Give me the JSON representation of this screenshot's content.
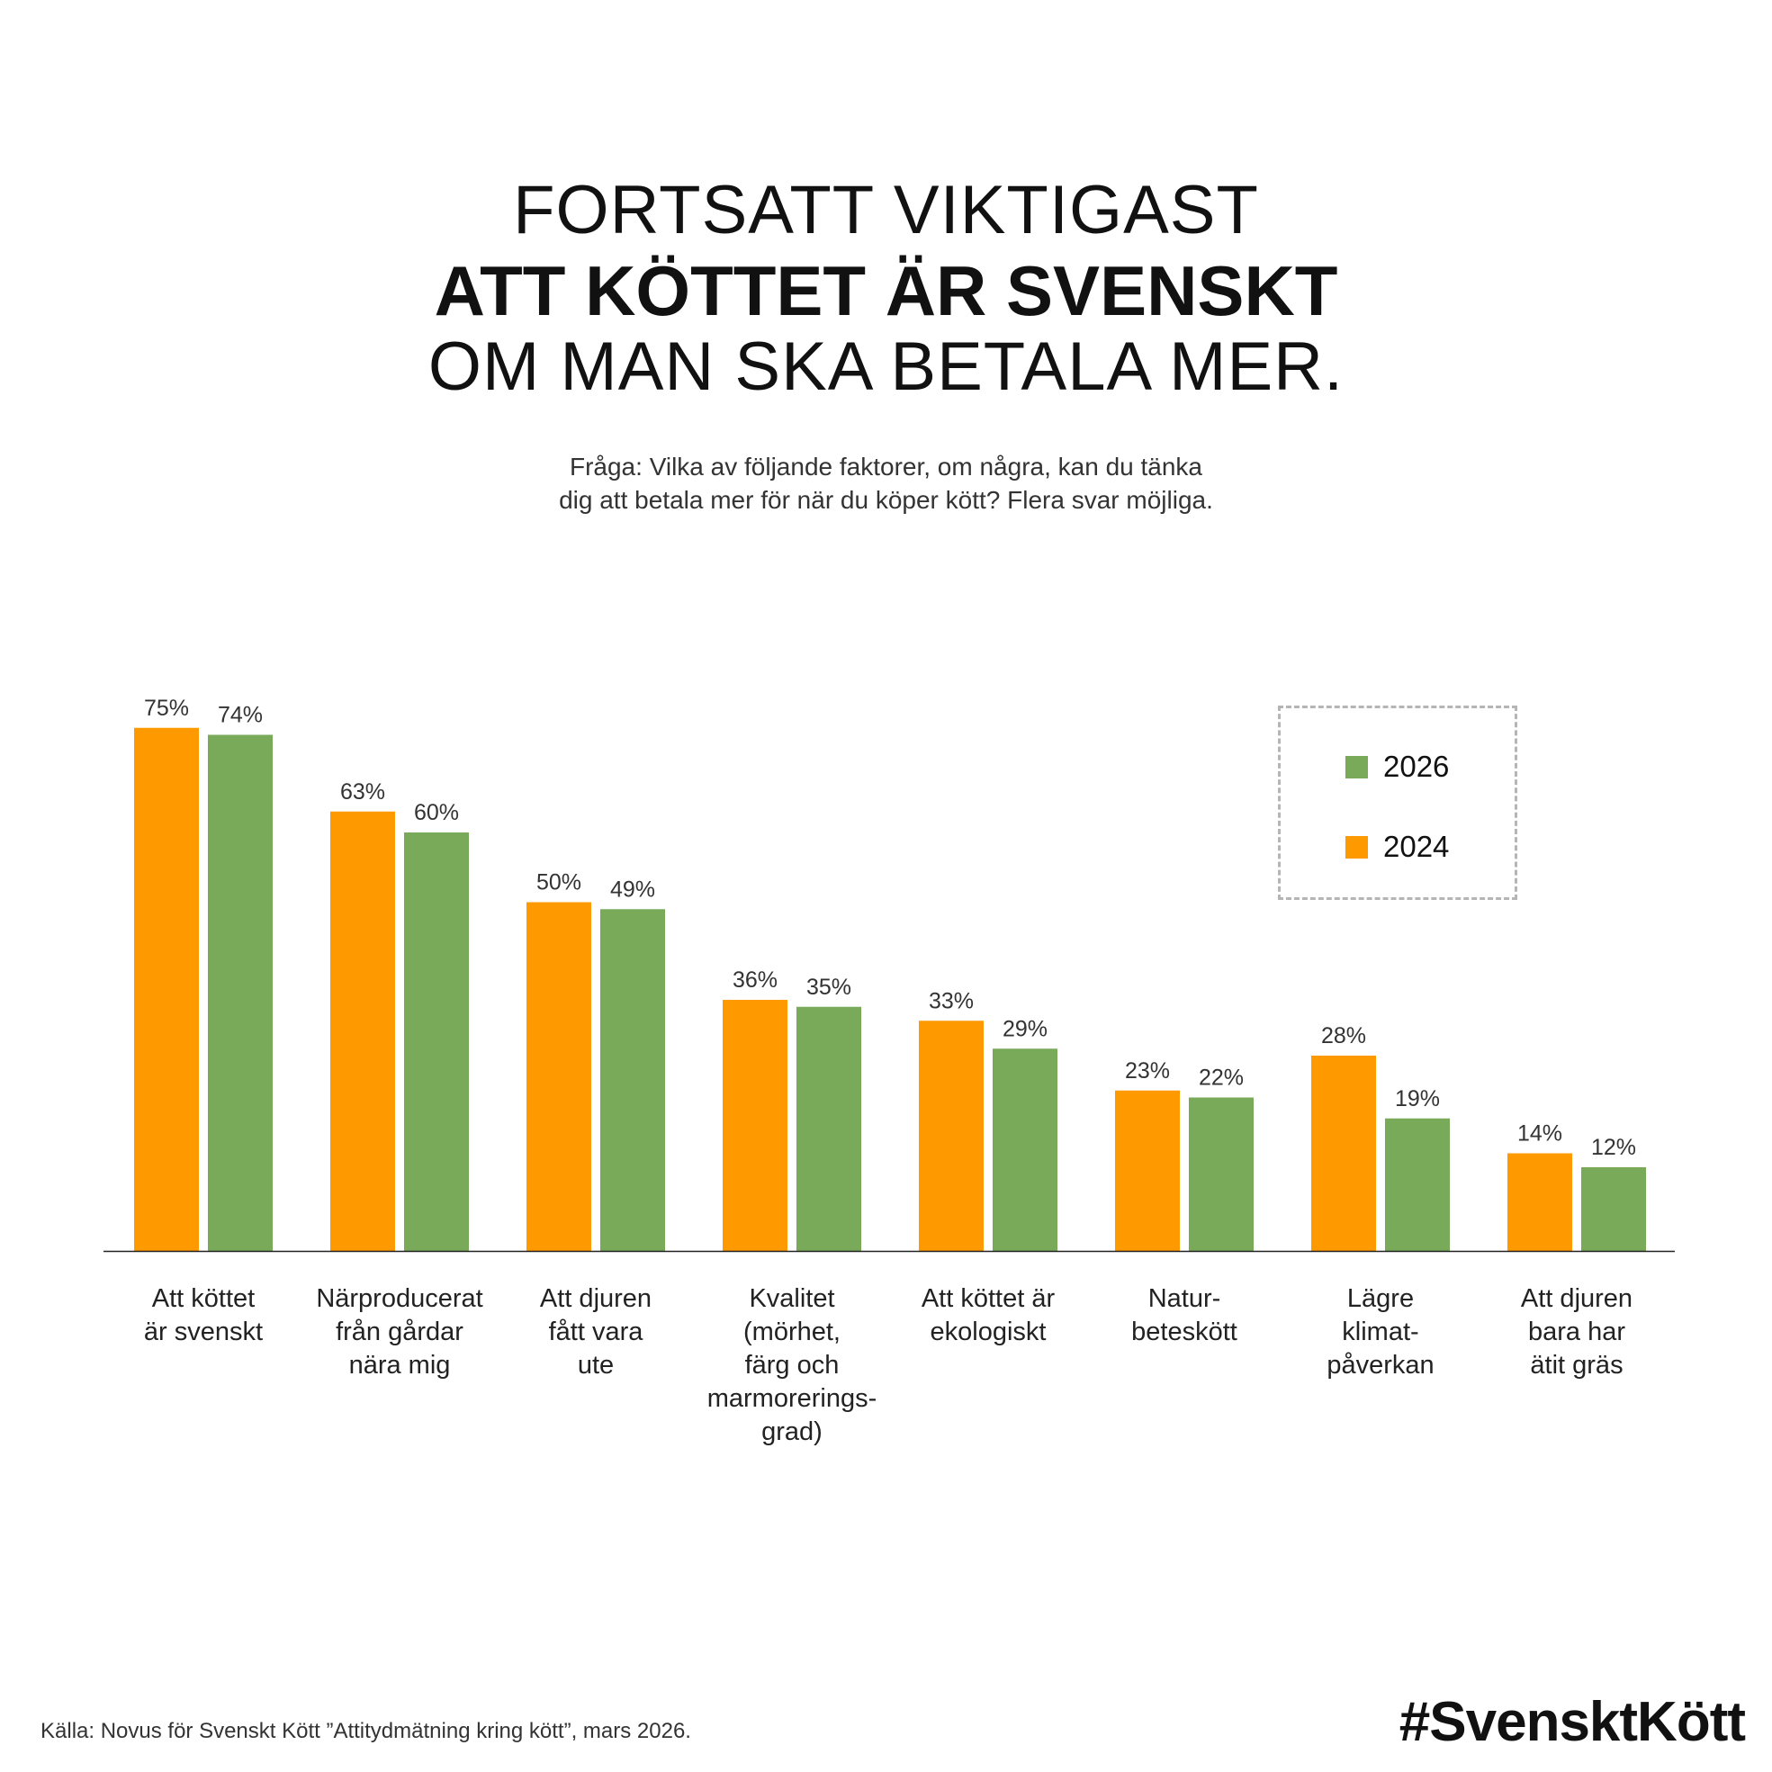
{
  "title": {
    "line1": "FORTSATT VIKTIGAST",
    "line2": "ATT KÖTTET ÄR SVENSKT",
    "line3": "OM MAN SKA BETALA MER."
  },
  "subtitle": {
    "line1": "Fråga: Vilka av följande faktorer, om några, kan du tänka",
    "line2": "dig att betala mer för när du köper kött? Flera svar möjliga."
  },
  "chart_data": {
    "type": "bar",
    "categories": [
      [
        "Att köttet",
        "är svenskt"
      ],
      [
        "Närproducerat",
        "från gårdar",
        "nära mig"
      ],
      [
        "Att djuren",
        "fått vara",
        "ute"
      ],
      [
        "Kvalitet",
        "(mörhet,",
        "färg och",
        "marmorerings-",
        "grad)"
      ],
      [
        "Att köttet är",
        "ekologiskt"
      ],
      [
        "Natur-",
        "beteskött"
      ],
      [
        "Lägre",
        "klimat-",
        "påverkan"
      ],
      [
        "Att djuren",
        "bara har",
        "ätit gräs"
      ]
    ],
    "series": [
      {
        "name": "2024",
        "color": "#FF9900",
        "values": [
          75,
          63,
          50,
          36,
          33,
          23,
          28,
          14
        ]
      },
      {
        "name": "2026",
        "color": "#78AA5A",
        "values": [
          74,
          60,
          49,
          35,
          29,
          22,
          19,
          12
        ]
      }
    ],
    "value_suffix": "%",
    "ylim": [
      0,
      75
    ],
    "grid": false,
    "legend_position": "top-right",
    "legend_order": [
      "2026",
      "2024"
    ]
  },
  "footer": {
    "source": "Källa: Novus för Svenskt Kött ”Attitydmätning kring kött”, mars 2026.",
    "hashtag": "#SvensktKött"
  }
}
